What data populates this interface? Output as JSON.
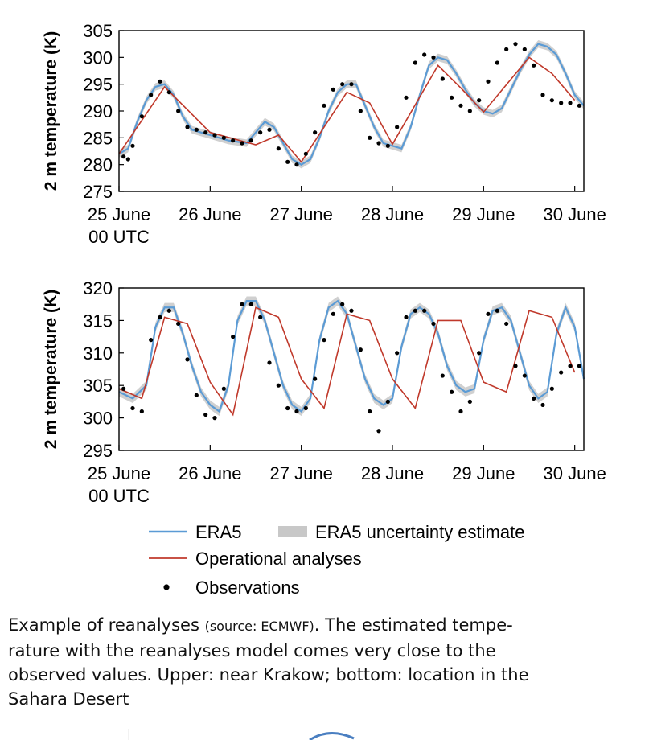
{
  "chart_data": [
    {
      "type": "line",
      "name": "Near Krakow",
      "ylabel": "2 m temperature (K)",
      "ylim": [
        275,
        305
      ],
      "yticks": [
        275,
        280,
        285,
        290,
        295,
        300,
        305
      ],
      "xlim": [
        0,
        5.1
      ],
      "xticks": [
        0,
        1,
        2,
        3,
        4,
        5
      ],
      "xtick_labels": [
        "25 June",
        "26 June",
        "27 June",
        "28 June",
        "29 June",
        "30 June"
      ],
      "xtick_sublabel": "00 UTC",
      "era5": {
        "x": [
          0,
          0.1,
          0.2,
          0.3,
          0.4,
          0.5,
          0.6,
          0.7,
          0.8,
          0.9,
          1.0,
          1.2,
          1.4,
          1.5,
          1.6,
          1.7,
          1.8,
          1.9,
          2.0,
          2.1,
          2.2,
          2.3,
          2.4,
          2.5,
          2.6,
          2.7,
          2.8,
          2.9,
          3.0,
          3.1,
          3.2,
          3.3,
          3.4,
          3.5,
          3.6,
          3.7,
          3.8,
          3.9,
          4.0,
          4.1,
          4.2,
          4.3,
          4.4,
          4.5,
          4.6,
          4.7,
          4.8,
          4.9,
          5.0,
          5.1
        ],
        "y": [
          282,
          283,
          288,
          292,
          294.5,
          295,
          293,
          289,
          286.5,
          286,
          285.5,
          284.5,
          284,
          286,
          288,
          287,
          284,
          281,
          280,
          281,
          285,
          290,
          293.5,
          295,
          295,
          291,
          287,
          284,
          283.5,
          283,
          287,
          293,
          298.5,
          300,
          299.5,
          297,
          294,
          291.5,
          290,
          289.5,
          290.5,
          294,
          297.5,
          300.5,
          302.5,
          302,
          300.5,
          297,
          293,
          291
        ]
      },
      "operational": {
        "x": [
          0,
          0.5,
          1.0,
          1.5,
          1.75,
          2.0,
          2.5,
          2.75,
          3.0,
          3.5,
          3.75,
          4.0,
          4.5,
          4.75,
          5.0
        ],
        "y": [
          282,
          294.5,
          286,
          283.7,
          285.5,
          280.5,
          293.5,
          291.5,
          283.8,
          298.5,
          294.3,
          289.8,
          300,
          297,
          292
        ]
      },
      "observations": {
        "x": [
          0.05,
          0.1,
          0.15,
          0.25,
          0.35,
          0.45,
          0.55,
          0.65,
          0.75,
          0.85,
          0.95,
          1.05,
          1.15,
          1.25,
          1.35,
          1.45,
          1.55,
          1.65,
          1.75,
          1.85,
          1.95,
          2.05,
          2.15,
          2.25,
          2.35,
          2.45,
          2.55,
          2.65,
          2.75,
          2.85,
          2.95,
          3.05,
          3.15,
          3.25,
          3.35,
          3.45,
          3.55,
          3.65,
          3.75,
          3.85,
          3.95,
          4.05,
          4.15,
          4.25,
          4.35,
          4.45,
          4.55,
          4.65,
          4.75,
          4.85,
          4.95,
          5.05
        ],
        "y": [
          281.5,
          281,
          283.5,
          289,
          293,
          295.5,
          293.5,
          290,
          287,
          286.5,
          286,
          285.5,
          285,
          284.5,
          284,
          284.5,
          286,
          286.5,
          283,
          280.5,
          280,
          282,
          286,
          291,
          294,
          295,
          295,
          290,
          285,
          284,
          283.5,
          287,
          292.5,
          299,
          300.5,
          300,
          296,
          292.5,
          291,
          290,
          292,
          295.5,
          299,
          301.5,
          302.5,
          301.5,
          298.5,
          293,
          292,
          291.5,
          291.5,
          291
        ]
      }
    },
    {
      "type": "line",
      "name": "Sahara Desert",
      "ylabel": "2 m temperature (K)",
      "ylim": [
        295,
        320
      ],
      "yticks": [
        295,
        300,
        305,
        310,
        315,
        320
      ],
      "xlim": [
        0,
        5.1
      ],
      "xticks": [
        0,
        1,
        2,
        3,
        4,
        5
      ],
      "xtick_labels": [
        "25 June",
        "26 June",
        "27 June",
        "28 June",
        "29 June",
        "30 June"
      ],
      "xtick_sublabel": "00 UTC",
      "era5": {
        "x": [
          0,
          0.15,
          0.3,
          0.4,
          0.5,
          0.6,
          0.7,
          0.8,
          0.9,
          1.0,
          1.1,
          1.2,
          1.3,
          1.4,
          1.5,
          1.6,
          1.7,
          1.8,
          1.9,
          2.0,
          2.1,
          2.2,
          2.3,
          2.4,
          2.5,
          2.6,
          2.7,
          2.8,
          2.9,
          3.0,
          3.1,
          3.2,
          3.3,
          3.4,
          3.5,
          3.6,
          3.7,
          3.8,
          3.9,
          4.0,
          4.1,
          4.2,
          4.3,
          4.4,
          4.5,
          4.6,
          4.7,
          4.8,
          4.9,
          5.0,
          5.1
        ],
        "y": [
          304,
          303,
          305,
          314,
          317,
          317,
          313,
          308,
          304,
          302,
          301,
          305,
          315,
          318,
          318,
          315,
          310,
          305,
          302,
          301,
          303,
          312,
          317,
          318,
          316,
          311,
          306,
          303,
          302,
          303,
          311,
          316,
          317,
          316,
          313,
          308,
          305,
          304,
          304.5,
          312,
          316.5,
          317,
          315,
          310,
          305,
          303,
          304,
          313,
          317,
          314,
          306
        ]
      },
      "operational": {
        "x": [
          0,
          0.25,
          0.5,
          0.75,
          1.0,
          1.25,
          1.5,
          1.75,
          2.0,
          2.25,
          2.5,
          2.75,
          3.0,
          3.25,
          3.5,
          3.75,
          4.0,
          4.25,
          4.5,
          4.75,
          5.0
        ],
        "y": [
          304.5,
          303,
          315.5,
          314.5,
          305.5,
          300.5,
          317,
          315.5,
          306,
          301.5,
          316,
          315,
          306,
          301.5,
          315,
          315,
          305.5,
          304,
          316.5,
          315.5,
          307
        ]
      },
      "observations": {
        "x": [
          0.05,
          0.15,
          0.25,
          0.35,
          0.45,
          0.55,
          0.65,
          0.75,
          0.85,
          0.95,
          1.05,
          1.15,
          1.25,
          1.35,
          1.45,
          1.55,
          1.65,
          1.75,
          1.85,
          1.95,
          2.05,
          2.15,
          2.25,
          2.35,
          2.45,
          2.55,
          2.65,
          2.75,
          2.85,
          2.95,
          3.05,
          3.15,
          3.25,
          3.35,
          3.45,
          3.55,
          3.65,
          3.75,
          3.85,
          3.95,
          4.05,
          4.15,
          4.25,
          4.35,
          4.45,
          4.55,
          4.65,
          4.75,
          4.85,
          4.95,
          5.05
        ],
        "y": [
          304.5,
          301.5,
          301,
          312,
          315.5,
          316.5,
          314.5,
          309,
          303.5,
          300.5,
          300,
          304.5,
          312.5,
          317.5,
          317.5,
          315.5,
          308.5,
          305,
          301.5,
          301,
          301.5,
          306,
          312,
          316,
          317.5,
          316.5,
          310.5,
          301,
          298,
          302.5,
          310,
          315.5,
          316.5,
          316.5,
          314.5,
          306.5,
          304,
          301,
          302.5,
          310,
          316,
          316.5,
          314.5,
          308,
          306.5,
          303,
          302,
          304.5,
          307,
          308,
          308
        ]
      }
    }
  ],
  "legend": {
    "era5_label": "ERA5",
    "uncertainty_label": "ERA5 uncertainty estimate",
    "operational_label": "Operational analyses",
    "observations_label": "Observations"
  },
  "caption": {
    "prefix": "Example of reanalyses ",
    "source": "(source: ECMWF)",
    "line1_rest": ". The estimated tempe-",
    "line2": "rature with the reanalyses model comes very close to the",
    "line3": "observed values. Upper: near Krakow; bottom: location in the",
    "line4": "Sahara Desert"
  },
  "colors": {
    "era5": "#5b9bd5",
    "uncertainty": "#c8c8c8",
    "operational": "#c0392b",
    "observations": "#000000",
    "axis": "#000000"
  }
}
